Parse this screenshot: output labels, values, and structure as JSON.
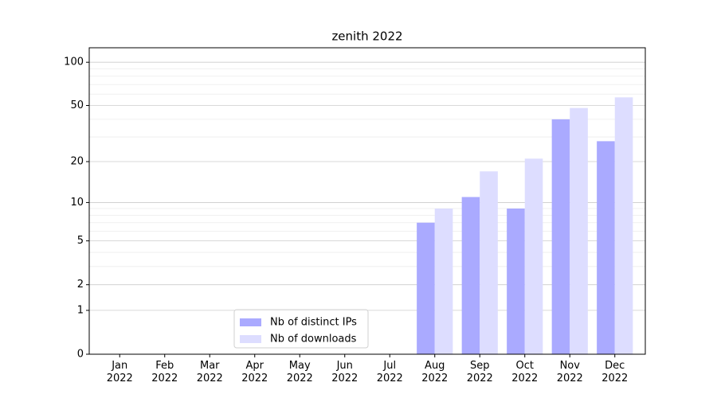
{
  "chart_data": {
    "type": "bar",
    "title": "zenith 2022",
    "categories": [
      "Jan\n2022",
      "Feb\n2022",
      "Mar\n2022",
      "Apr\n2022",
      "May\n2022",
      "Jun\n2022",
      "Jul\n2022",
      "Aug\n2022",
      "Sep\n2022",
      "Oct\n2022",
      "Nov\n2022",
      "Dec\n2022"
    ],
    "series": [
      {
        "name": "Nb of distinct IPs",
        "color": "#aaaaff",
        "values": [
          0,
          0,
          0,
          0,
          0,
          0,
          0,
          7,
          11,
          9,
          40,
          28
        ]
      },
      {
        "name": "Nb of downloads",
        "color": "#ddddff",
        "values": [
          0,
          0,
          0,
          0,
          0,
          0,
          0,
          9,
          17,
          21,
          48,
          57
        ]
      }
    ],
    "yscale": "log1p",
    "ylim": [
      0,
      126
    ],
    "yticks": [
      0,
      1,
      2,
      5,
      10,
      20,
      50,
      100
    ],
    "yminorticks": [
      3,
      4,
      6,
      7,
      8,
      9,
      30,
      40,
      60,
      70,
      80,
      90
    ],
    "grid": true,
    "legend": "lower center"
  }
}
